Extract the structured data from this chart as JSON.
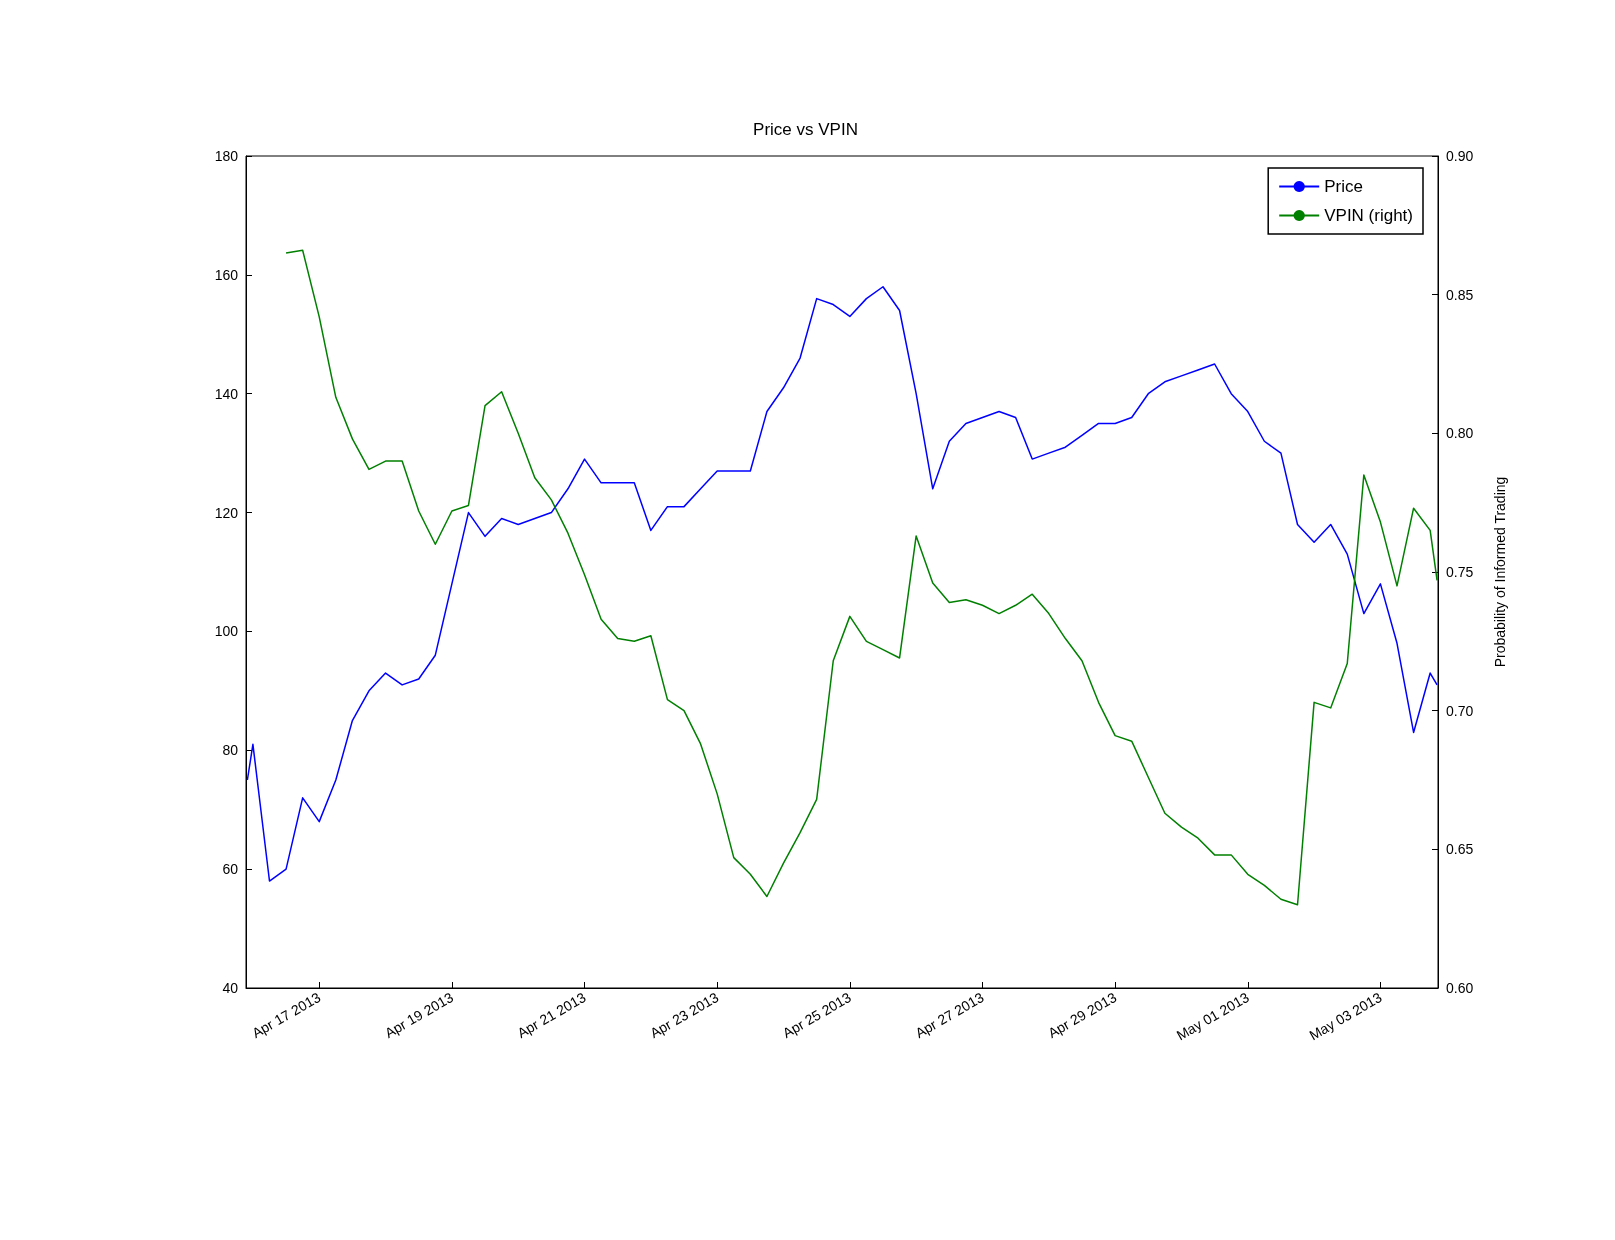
{
  "chart_data": {
    "type": "line",
    "title": "Price vs VPIN",
    "y2label": "Probability of Informed Trading",
    "x": [
      "2013-04-15T22:00",
      "2013-04-16T00:00",
      "2013-04-16T06:00",
      "2013-04-16T12:00",
      "2013-04-16T18:00",
      "2013-04-17T00:00",
      "2013-04-17T06:00",
      "2013-04-17T12:00",
      "2013-04-17T18:00",
      "2013-04-18T00:00",
      "2013-04-18T06:00",
      "2013-04-18T12:00",
      "2013-04-18T18:00",
      "2013-04-19T00:00",
      "2013-04-19T06:00",
      "2013-04-19T12:00",
      "2013-04-19T18:00",
      "2013-04-20T00:00",
      "2013-04-20T06:00",
      "2013-04-20T12:00",
      "2013-04-20T18:00",
      "2013-04-21T00:00",
      "2013-04-21T06:00",
      "2013-04-21T12:00",
      "2013-04-21T18:00",
      "2013-04-22T00:00",
      "2013-04-22T06:00",
      "2013-04-22T12:00",
      "2013-04-22T18:00",
      "2013-04-23T00:00",
      "2013-04-23T06:00",
      "2013-04-23T12:00",
      "2013-04-23T18:00",
      "2013-04-24T00:00",
      "2013-04-24T06:00",
      "2013-04-24T12:00",
      "2013-04-24T18:00",
      "2013-04-25T00:00",
      "2013-04-25T06:00",
      "2013-04-25T12:00",
      "2013-04-25T18:00",
      "2013-04-26T00:00",
      "2013-04-26T06:00",
      "2013-04-26T12:00",
      "2013-04-26T18:00",
      "2013-04-27T00:00",
      "2013-04-27T06:00",
      "2013-04-27T12:00",
      "2013-04-27T18:00",
      "2013-04-28T00:00",
      "2013-04-28T06:00",
      "2013-04-28T12:00",
      "2013-04-28T18:00",
      "2013-04-29T00:00",
      "2013-04-29T06:00",
      "2013-04-29T12:00",
      "2013-04-29T18:00",
      "2013-04-30T00:00",
      "2013-04-30T06:00",
      "2013-04-30T12:00",
      "2013-04-30T18:00",
      "2013-05-01T00:00",
      "2013-05-01T06:00",
      "2013-05-01T12:00",
      "2013-05-01T18:00",
      "2013-05-02T00:00",
      "2013-05-02T06:00",
      "2013-05-02T12:00",
      "2013-05-02T18:00",
      "2013-05-03T00:00",
      "2013-05-03T06:00",
      "2013-05-03T12:00",
      "2013-05-03T18:00",
      "2013-05-03T20:30"
    ],
    "series": [
      {
        "name": "Price",
        "color": "#0000ff",
        "values": [
          75,
          81,
          58,
          60,
          72,
          68,
          75,
          85,
          90,
          93,
          91,
          92,
          96,
          108,
          120,
          116,
          119,
          118,
          119,
          120,
          124,
          129,
          125,
          125,
          125,
          117,
          121,
          121,
          124,
          127,
          127,
          127,
          137,
          141,
          146,
          156,
          155,
          153,
          156,
          158,
          154,
          140,
          124,
          132,
          135,
          136,
          137,
          136,
          129,
          130,
          131,
          133,
          135,
          135,
          136,
          140,
          142,
          143,
          144,
          145,
          140,
          137,
          132,
          130,
          118,
          115,
          118,
          113,
          103,
          108,
          98,
          83,
          93,
          91
        ]
      },
      {
        "name": "VPIN (right)",
        "color": "#008000",
        "axis": "y2",
        "values": [
          null,
          null,
          null,
          0.865,
          0.866,
          0.842,
          0.813,
          0.798,
          0.787,
          0.79,
          0.79,
          0.772,
          0.76,
          0.772,
          0.774,
          0.81,
          0.815,
          0.8,
          0.784,
          0.776,
          0.764,
          0.749,
          0.733,
          0.726,
          0.725,
          0.727,
          0.704,
          0.7,
          0.688,
          0.67,
          0.647,
          0.641,
          0.633,
          0.645,
          0.656,
          0.668,
          0.718,
          0.734,
          0.725,
          0.722,
          0.719,
          0.763,
          0.746,
          0.739,
          0.74,
          0.738,
          0.735,
          0.738,
          0.742,
          0.735,
          0.726,
          0.718,
          0.703,
          0.691,
          0.689,
          0.676,
          0.663,
          0.658,
          0.654,
          0.648,
          0.648,
          0.641,
          0.637,
          0.632,
          0.63,
          0.703,
          0.701,
          0.717,
          0.785,
          0.768,
          0.745,
          0.773,
          0.765,
          0.747
        ]
      }
    ],
    "xlim": [
      "2013-04-15T21:30",
      "2013-05-03T20:50"
    ],
    "xticks": [
      {
        "value": "2013-04-17T00:00",
        "label": "Apr 17 2013"
      },
      {
        "value": "2013-04-19T00:00",
        "label": "Apr 19 2013"
      },
      {
        "value": "2013-04-21T00:00",
        "label": "Apr 21 2013"
      },
      {
        "value": "2013-04-23T00:00",
        "label": "Apr 23 2013"
      },
      {
        "value": "2013-04-25T00:00",
        "label": "Apr 25 2013"
      },
      {
        "value": "2013-04-27T00:00",
        "label": "Apr 27 2013"
      },
      {
        "value": "2013-04-29T00:00",
        "label": "Apr 29 2013"
      },
      {
        "value": "2013-05-01T00:00",
        "label": "May 01 2013"
      },
      {
        "value": "2013-05-03T00:00",
        "label": "May 03 2013"
      }
    ],
    "ylim": [
      40,
      180
    ],
    "yticks": [
      40,
      60,
      80,
      100,
      120,
      140,
      160,
      180
    ],
    "y2lim": [
      0.6,
      0.9
    ],
    "y2ticks": [
      {
        "value": 0.6,
        "label": "0.60"
      },
      {
        "value": 0.65,
        "label": "0.65"
      },
      {
        "value": 0.7,
        "label": "0.70"
      },
      {
        "value": 0.75,
        "label": "0.75"
      },
      {
        "value": 0.8,
        "label": "0.80"
      },
      {
        "value": 0.85,
        "label": "0.85"
      },
      {
        "value": 0.9,
        "label": "0.90"
      }
    ],
    "legend": "top right",
    "grid": false,
    "marker": "none",
    "line_style": "solid"
  }
}
